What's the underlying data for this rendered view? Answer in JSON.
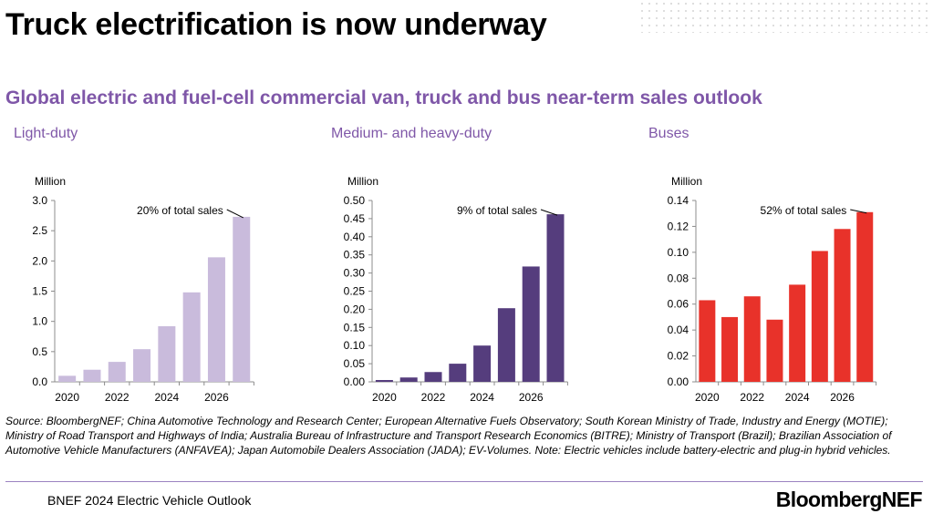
{
  "title": "Truck electrification is now underway",
  "subtitle": "Global electric and fuel-cell commercial van, truck and bus near-term sales outlook",
  "colors": {
    "accent": "#7f57a8",
    "light": "#c9bbdc",
    "medium": "#553d7d",
    "buses": "#e8322a"
  },
  "chart_data": [
    {
      "type": "bar",
      "title": "Light-duty",
      "ylabel": "Million",
      "categories": [
        "2020",
        "2021",
        "2022",
        "2023",
        "2024",
        "2025",
        "2026",
        "2027"
      ],
      "x_tick_labels": [
        "2020",
        "2022",
        "2024",
        "2026"
      ],
      "values": [
        0.1,
        0.2,
        0.33,
        0.54,
        0.92,
        1.48,
        2.06,
        2.73
      ],
      "ylim": [
        0,
        3.0
      ],
      "y_ticks": [
        "0.0",
        "0.5",
        "1.0",
        "1.5",
        "2.0",
        "2.5",
        "3.0"
      ],
      "annotation": "20% of total sales",
      "color": "#c9bbdc"
    },
    {
      "type": "bar",
      "title": "Medium- and heavy-duty",
      "ylabel": "Million",
      "categories": [
        "2020",
        "2021",
        "2022",
        "2023",
        "2024",
        "2025",
        "2026",
        "2027"
      ],
      "x_tick_labels": [
        "2020",
        "2022",
        "2024",
        "2026"
      ],
      "values": [
        0.005,
        0.012,
        0.027,
        0.05,
        0.1,
        0.203,
        0.318,
        0.462
      ],
      "ylim": [
        0,
        0.5
      ],
      "y_ticks": [
        "0.00",
        "0.05",
        "0.10",
        "0.15",
        "0.20",
        "0.25",
        "0.30",
        "0.35",
        "0.40",
        "0.45",
        "0.50"
      ],
      "annotation": "9% of total sales",
      "color": "#553d7d"
    },
    {
      "type": "bar",
      "title": "Buses",
      "ylabel": "Million",
      "categories": [
        "2020",
        "2021",
        "2022",
        "2023",
        "2024",
        "2025",
        "2026",
        "2027"
      ],
      "x_tick_labels": [
        "2020",
        "2022",
        "2024",
        "2026"
      ],
      "values": [
        0.063,
        0.05,
        0.066,
        0.048,
        0.075,
        0.101,
        0.118,
        0.131
      ],
      "ylim": [
        0,
        0.14
      ],
      "y_ticks": [
        "0.00",
        "0.02",
        "0.04",
        "0.06",
        "0.08",
        "0.10",
        "0.12",
        "0.14"
      ],
      "annotation": "52% of total sales",
      "color": "#e8322a"
    }
  ],
  "source": "Source: BloombergNEF; China Automotive Technology and Research Center; European Alternative Fuels Observatory; South Korean Ministry of Trade, Industry and Energy (MOTIE); Ministry of Road Transport and Highways of India; Australia Bureau of Infrastructure and Transport Research Economics (BITRE); Ministry of Transport (Brazil); Brazilian Association of Automotive Vehicle Manufacturers (ANFAVEA); Japan Automobile Dealers Association (JADA); EV-Volumes. Note: Electric vehicles include battery-electric and plug-in hybrid vehicles.",
  "footer": "BNEF 2024 Electric Vehicle Outlook",
  "brand": {
    "part1": "Bloomberg",
    "part2": "NEF"
  }
}
